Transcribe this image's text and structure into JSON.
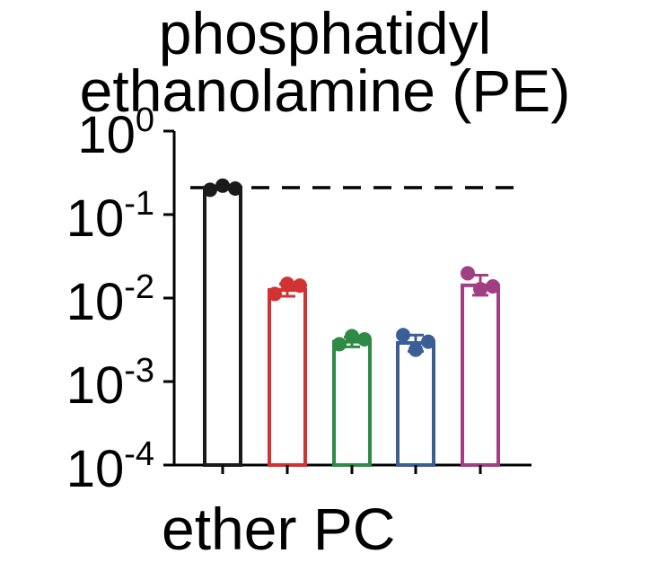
{
  "chart_data": {
    "type": "bar",
    "title_lines": [
      "phosphatidyl",
      "ethanolamine (PE)"
    ],
    "y_scale": "log",
    "ylim": [
      0.0001,
      1
    ],
    "y_ticks": [
      {
        "base": "10",
        "exp": "0",
        "value": 1
      },
      {
        "base": "10",
        "exp": "-1",
        "value": 0.1
      },
      {
        "base": "10",
        "exp": "-2",
        "value": 0.01
      },
      {
        "base": "10",
        "exp": "-3",
        "value": 0.001
      },
      {
        "base": "10",
        "exp": "-4",
        "value": 0.0001
      }
    ],
    "reference_line": 0.21,
    "xlabel_partial": "ether PC",
    "grid": false,
    "legend": "none",
    "series": [
      {
        "color": "#1a1a1a",
        "mean": 0.21,
        "sd_low": 0.2,
        "sd_high": 0.22,
        "points": [
          0.198,
          0.222,
          0.205
        ]
      },
      {
        "color": "#d23232",
        "mean": 0.0125,
        "sd_low": 0.0105,
        "sd_high": 0.0148,
        "points": [
          0.0112,
          0.0148,
          0.0141
        ]
      },
      {
        "color": "#2e8b45",
        "mean": 0.003,
        "sd_low": 0.0026,
        "sd_high": 0.0034,
        "points": [
          0.0028,
          0.0035,
          0.0032
        ]
      },
      {
        "color": "#3a5f96",
        "mean": 0.0029,
        "sd_low": 0.0023,
        "sd_high": 0.0036,
        "points": [
          0.0036,
          0.0024,
          0.003
        ]
      },
      {
        "color": "#a23f82",
        "mean": 0.0142,
        "sd_low": 0.0108,
        "sd_high": 0.0188,
        "points": [
          0.0198,
          0.0128,
          0.0138
        ]
      }
    ]
  }
}
